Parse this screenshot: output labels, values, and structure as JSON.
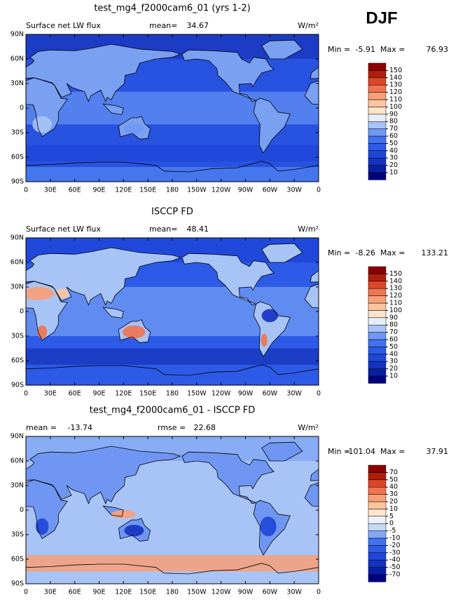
{
  "season": "DJF",
  "chart_data": [
    {
      "type": "contour",
      "title": "test_mg4_f2000cam6_01 (yrs 1-2)",
      "subtitle": "Surface net LW flux",
      "mean_label": "mean=",
      "mean": 34.67,
      "units": "W/m²",
      "min_label": "Min =",
      "min": -5.91,
      "max_label": "Max =",
      "max": 76.93,
      "xlim": [
        0,
        360
      ],
      "xticks": [
        0,
        {
          "value": 30,
          "label": "30E"
        },
        {
          "value": 60,
          "label": "60E"
        },
        {
          "value": 90,
          "label": "90E"
        },
        {
          "value": 120,
          "label": "120E"
        },
        {
          "value": 150,
          "label": "150E"
        },
        {
          "value": 180,
          "label": "180"
        },
        {
          "value": 210,
          "label": "150W"
        },
        {
          "value": 240,
          "label": "120W"
        },
        {
          "value": 270,
          "label": "90W"
        },
        {
          "value": 300,
          "label": "60W"
        },
        {
          "value": 330,
          "label": "30W"
        },
        {
          "value": 360,
          "label": "0"
        }
      ],
      "ylim": [
        -90,
        90
      ],
      "yticks": [
        {
          "value": -90,
          "label": "90S"
        },
        {
          "value": -60,
          "label": "60S"
        },
        {
          "value": -30,
          "label": "30S"
        },
        0,
        {
          "value": 30,
          "label": "30N"
        },
        {
          "value": 60,
          "label": "60N"
        },
        {
          "value": 90,
          "label": "90N"
        }
      ],
      "levels": [
        10,
        20,
        30,
        40,
        50,
        60,
        70,
        80,
        90,
        100,
        110,
        120,
        130,
        140,
        150
      ],
      "colors": [
        "#000080",
        "#0a1fa0",
        "#1432c0",
        "#1e46d8",
        "#2d5ae6",
        "#4272ee",
        "#6e98f2",
        "#a8c4f6",
        "#e8eef8",
        "#fde4cc",
        "#fcc5a0",
        "#f8a078",
        "#ef7450",
        "#dc4628",
        "#b01e0e",
        "#8b0000"
      ]
    },
    {
      "type": "contour",
      "title": "ISCCP FD",
      "subtitle": "Surface net LW flux",
      "mean_label": "mean=",
      "mean": 48.41,
      "units": "W/m²",
      "min_label": "Min =",
      "min": -8.26,
      "max_label": "Max =",
      "max": 133.21,
      "xlim": [
        0,
        360
      ],
      "xticks": [
        0,
        {
          "value": 30,
          "label": "30E"
        },
        {
          "value": 60,
          "label": "60E"
        },
        {
          "value": 90,
          "label": "90E"
        },
        {
          "value": 120,
          "label": "120E"
        },
        {
          "value": 150,
          "label": "150E"
        },
        {
          "value": 180,
          "label": "180"
        },
        {
          "value": 210,
          "label": "150W"
        },
        {
          "value": 240,
          "label": "120W"
        },
        {
          "value": 270,
          "label": "90W"
        },
        {
          "value": 300,
          "label": "60W"
        },
        {
          "value": 330,
          "label": "30W"
        },
        {
          "value": 360,
          "label": "0"
        }
      ],
      "ylim": [
        -90,
        90
      ],
      "yticks": [
        {
          "value": -90,
          "label": "90S"
        },
        {
          "value": -60,
          "label": "60S"
        },
        {
          "value": -30,
          "label": "30S"
        },
        0,
        {
          "value": 30,
          "label": "30N"
        },
        {
          "value": 60,
          "label": "60N"
        },
        {
          "value": 90,
          "label": "90N"
        }
      ],
      "levels": [
        10,
        20,
        30,
        40,
        50,
        60,
        70,
        80,
        90,
        100,
        110,
        120,
        130,
        140,
        150
      ],
      "colors": [
        "#000080",
        "#0a1fa0",
        "#1432c0",
        "#1e46d8",
        "#2d5ae6",
        "#4272ee",
        "#6e98f2",
        "#a8c4f6",
        "#e8eef8",
        "#fde4cc",
        "#fcc5a0",
        "#f8a078",
        "#ef7450",
        "#dc4628",
        "#b01e0e",
        "#8b0000"
      ]
    },
    {
      "type": "contour",
      "title": "test_mg4_f2000cam6_01 - ISCCP FD",
      "mean_label": "mean =",
      "mean": -13.74,
      "rmse_label": "rmse =",
      "rmse": 22.68,
      "units": "W/m²",
      "min_label": "Min =",
      "min": -101.04,
      "max_label": "Max =",
      "max": 37.91,
      "xlim": [
        0,
        360
      ],
      "xticks": [
        0,
        {
          "value": 30,
          "label": "30E"
        },
        {
          "value": 60,
          "label": "60E"
        },
        {
          "value": 90,
          "label": "90E"
        },
        {
          "value": 120,
          "label": "120E"
        },
        {
          "value": 150,
          "label": "150E"
        },
        {
          "value": 180,
          "label": "180"
        },
        {
          "value": 210,
          "label": "150W"
        },
        {
          "value": 240,
          "label": "120W"
        },
        {
          "value": 270,
          "label": "90W"
        },
        {
          "value": 300,
          "label": "60W"
        },
        {
          "value": 330,
          "label": "30W"
        },
        {
          "value": 360,
          "label": "0"
        }
      ],
      "ylim": [
        -90,
        90
      ],
      "yticks": [
        {
          "value": -90,
          "label": "90S"
        },
        {
          "value": -60,
          "label": "60S"
        },
        {
          "value": -30,
          "label": "30S"
        },
        0,
        {
          "value": 30,
          "label": "30N"
        },
        {
          "value": 60,
          "label": "60N"
        },
        {
          "value": 90,
          "label": "90N"
        }
      ],
      "levels": [
        -70,
        -50,
        -40,
        -30,
        -20,
        -10,
        -5,
        0,
        5,
        10,
        20,
        30,
        40,
        50,
        70
      ],
      "colors": [
        "#000080",
        "#0a1fa0",
        "#1432c0",
        "#1e46d8",
        "#2d5ae6",
        "#4272ee",
        "#82a8f4",
        "#c4d8f8",
        "#eef2f8",
        "#fde4cc",
        "#fcc5a0",
        "#f8a078",
        "#ef7450",
        "#dc4628",
        "#b01e0e",
        "#8b0000"
      ]
    }
  ]
}
